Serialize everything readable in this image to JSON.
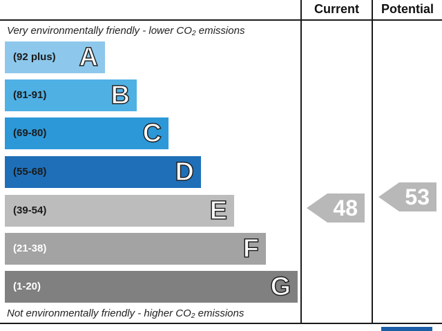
{
  "header": {
    "current_label": "Current",
    "potential_label": "Potential"
  },
  "notes": {
    "top": "Very environmentally friendly - lower CO₂ emissions",
    "bottom": "Not environmentally friendly - higher CO₂ emissions"
  },
  "chart_data": {
    "type": "bar",
    "categories": [
      "A",
      "B",
      "C",
      "D",
      "E",
      "F",
      "G"
    ],
    "bands": [
      {
        "letter": "A",
        "range": "(92 plus)",
        "color": "#8dc8ec",
        "text_color": "#1a1a1a"
      },
      {
        "letter": "B",
        "range": "(81-91)",
        "color": "#4fb0e4",
        "text_color": "#1a1a1a"
      },
      {
        "letter": "C",
        "range": "(69-80)",
        "color": "#2c98d8",
        "text_color": "#1a1a1a"
      },
      {
        "letter": "D",
        "range": "(55-68)",
        "color": "#1e6fb8",
        "text_color": "#1a1a1a"
      },
      {
        "letter": "E",
        "range": "(39-54)",
        "color": "#bcbcbc",
        "text_color": "#1a1a1a"
      },
      {
        "letter": "F",
        "range": "(21-38)",
        "color": "#a3a3a3",
        "text_color": "#ffffff"
      },
      {
        "letter": "G",
        "range": "(1-20)",
        "color": "#808080",
        "text_color": "#ffffff"
      }
    ],
    "current": {
      "value": 48,
      "band": "E"
    },
    "potential": {
      "value": 53,
      "band": "E"
    }
  }
}
